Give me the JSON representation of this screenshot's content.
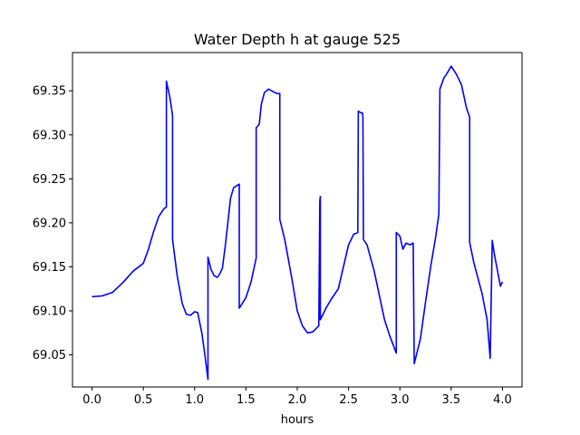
{
  "chart_data": {
    "type": "line",
    "title": "Water Depth h at gauge 525",
    "xlabel": "hours",
    "ylabel": "",
    "xlim": [
      -0.19,
      4.19
    ],
    "ylim": [
      69.0135,
      69.3935
    ],
    "xticks": [
      0.0,
      0.5,
      1.0,
      1.5,
      2.0,
      2.5,
      3.0,
      3.5,
      4.0
    ],
    "xtick_labels": [
      "0.0",
      "0.5",
      "1.0",
      "1.5",
      "2.0",
      "2.5",
      "3.0",
      "3.5",
      "4.0"
    ],
    "yticks": [
      69.05,
      69.1,
      69.15,
      69.2,
      69.25,
      69.3,
      69.35
    ],
    "ytick_labels": [
      "69.05",
      "69.10",
      "69.15",
      "69.20",
      "69.25",
      "69.30",
      "69.35"
    ],
    "grid": false,
    "series": [
      {
        "color": "#0000ff",
        "points": [
          [
            0.0,
            69.116
          ],
          [
            0.1,
            69.117
          ],
          [
            0.2,
            69.121
          ],
          [
            0.3,
            69.132
          ],
          [
            0.4,
            69.145
          ],
          [
            0.5,
            69.154
          ],
          [
            0.55,
            69.17
          ],
          [
            0.6,
            69.19
          ],
          [
            0.65,
            69.207
          ],
          [
            0.7,
            69.216
          ],
          [
            0.725,
            69.218
          ],
          [
            0.725,
            69.361
          ],
          [
            0.76,
            69.342
          ],
          [
            0.785,
            69.322
          ],
          [
            0.785,
            69.181
          ],
          [
            0.83,
            69.14
          ],
          [
            0.88,
            69.108
          ],
          [
            0.92,
            69.096
          ],
          [
            0.96,
            69.095
          ],
          [
            1.0,
            69.099
          ],
          [
            1.03,
            69.098
          ],
          [
            1.07,
            69.075
          ],
          [
            1.1,
            69.05
          ],
          [
            1.13,
            69.022
          ],
          [
            1.13,
            69.161
          ],
          [
            1.16,
            69.147
          ],
          [
            1.19,
            69.14
          ],
          [
            1.22,
            69.138
          ],
          [
            1.24,
            69.141
          ],
          [
            1.27,
            69.148
          ],
          [
            1.3,
            69.175
          ],
          [
            1.35,
            69.228
          ],
          [
            1.38,
            69.24
          ],
          [
            1.435,
            69.244
          ],
          [
            1.435,
            69.103
          ],
          [
            1.5,
            69.115
          ],
          [
            1.55,
            69.133
          ],
          [
            1.6,
            69.16
          ],
          [
            1.6,
            69.308
          ],
          [
            1.63,
            69.312
          ],
          [
            1.65,
            69.335
          ],
          [
            1.68,
            69.348
          ],
          [
            1.72,
            69.352
          ],
          [
            1.75,
            69.35
          ],
          [
            1.8,
            69.347
          ],
          [
            1.83,
            69.347
          ],
          [
            1.83,
            69.204
          ],
          [
            1.88,
            69.18
          ],
          [
            1.95,
            69.135
          ],
          [
            2.0,
            69.1
          ],
          [
            2.05,
            69.083
          ],
          [
            2.1,
            69.075
          ],
          [
            2.15,
            69.076
          ],
          [
            2.21,
            69.083
          ],
          [
            2.22,
            69.225
          ],
          [
            2.225,
            69.23
          ],
          [
            2.225,
            69.09
          ],
          [
            2.28,
            69.103
          ],
          [
            2.33,
            69.113
          ],
          [
            2.4,
            69.125
          ],
          [
            2.45,
            69.15
          ],
          [
            2.5,
            69.175
          ],
          [
            2.55,
            69.187
          ],
          [
            2.59,
            69.189
          ],
          [
            2.595,
            69.327
          ],
          [
            2.62,
            69.325
          ],
          [
            2.635,
            69.325
          ],
          [
            2.64,
            69.32
          ],
          [
            2.645,
            69.181
          ],
          [
            2.68,
            69.175
          ],
          [
            2.75,
            69.145
          ],
          [
            2.85,
            69.09
          ],
          [
            2.9,
            69.072
          ],
          [
            2.965,
            69.052
          ],
          [
            2.965,
            69.189
          ],
          [
            3.0,
            69.185
          ],
          [
            3.03,
            69.17
          ],
          [
            3.06,
            69.177
          ],
          [
            3.1,
            69.175
          ],
          [
            3.13,
            69.177
          ],
          [
            3.14,
            69.04
          ],
          [
            3.2,
            69.068
          ],
          [
            3.25,
            69.11
          ],
          [
            3.3,
            69.15
          ],
          [
            3.35,
            69.185
          ],
          [
            3.38,
            69.21
          ],
          [
            3.39,
            69.352
          ],
          [
            3.43,
            69.365
          ],
          [
            3.45,
            69.368
          ],
          [
            3.5,
            69.378
          ],
          [
            3.55,
            69.369
          ],
          [
            3.6,
            69.357
          ],
          [
            3.65,
            69.33
          ],
          [
            3.68,
            69.32
          ],
          [
            3.68,
            69.178
          ],
          [
            3.72,
            69.155
          ],
          [
            3.8,
            69.12
          ],
          [
            3.85,
            69.09
          ],
          [
            3.88,
            69.046
          ],
          [
            3.9,
            69.18
          ],
          [
            3.92,
            69.165
          ],
          [
            3.96,
            69.14
          ],
          [
            3.98,
            69.128
          ],
          [
            4.0,
            69.133
          ]
        ]
      }
    ]
  }
}
